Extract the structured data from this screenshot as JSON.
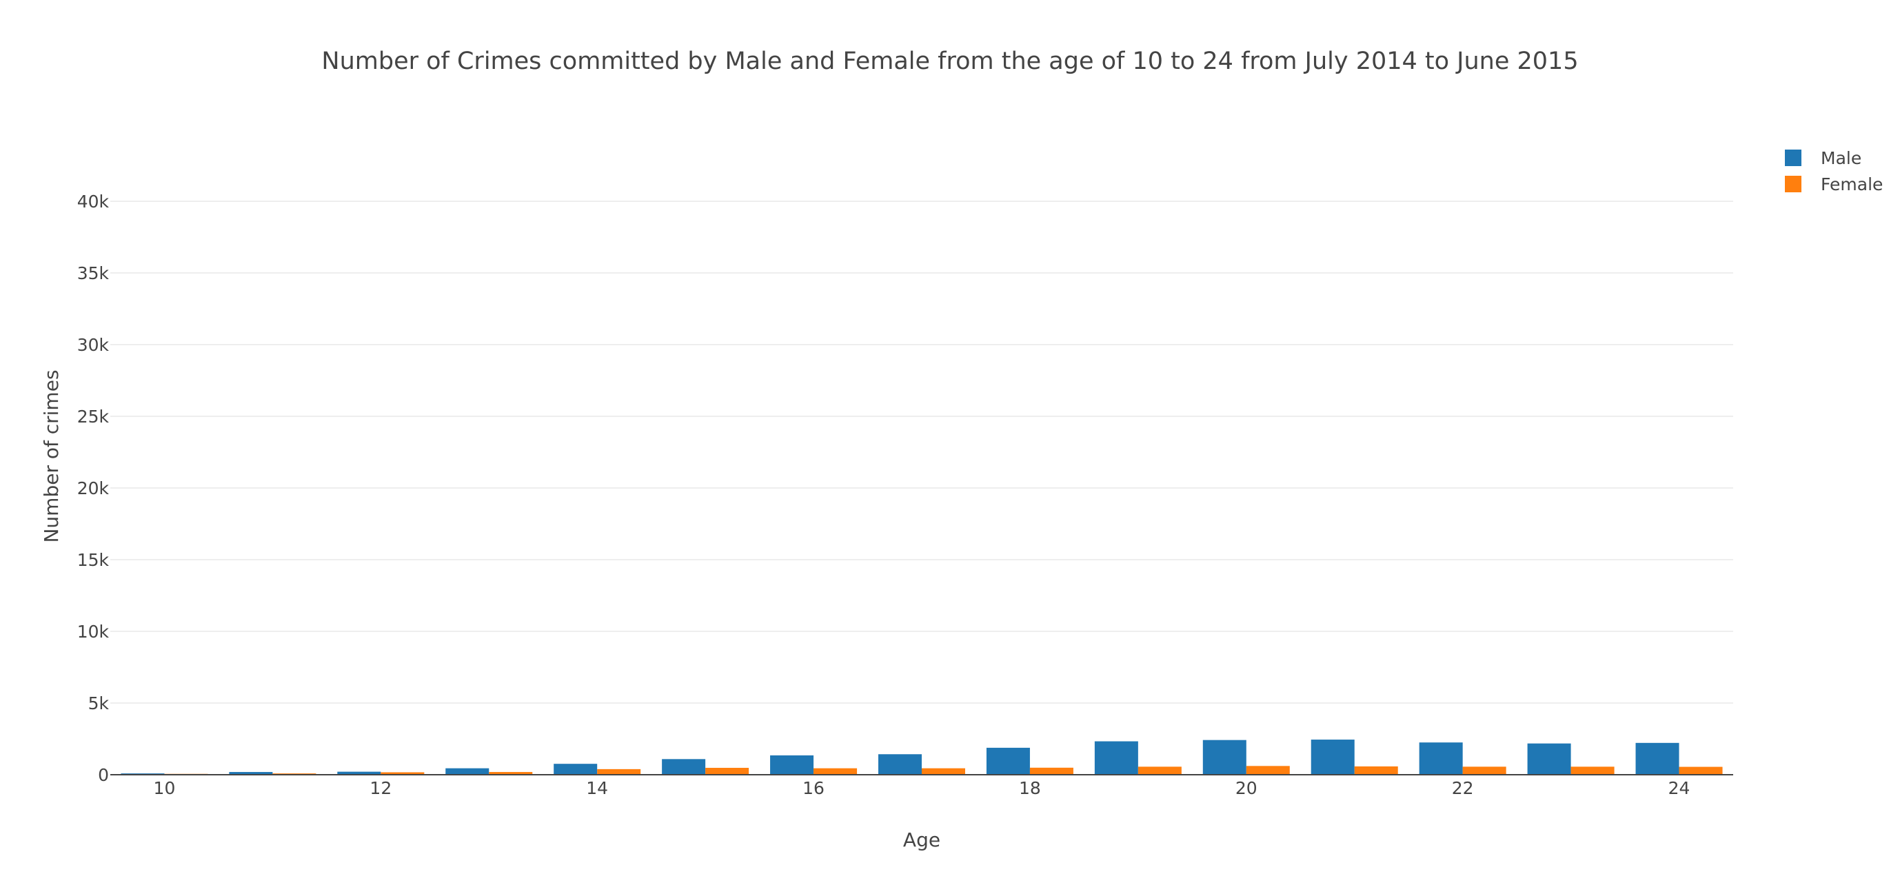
{
  "chart_data": {
    "type": "bar",
    "title": "Number of Crimes committed by Male and Female from the age of 10 to 24 from July 2014 to June 2015",
    "xlabel": "Age",
    "ylabel": "Number of crimes",
    "categories": [
      10,
      11,
      12,
      13,
      14,
      15,
      16,
      17,
      18,
      19,
      20,
      21,
      22,
      23,
      24
    ],
    "x_ticks": [
      10,
      12,
      14,
      16,
      18,
      20,
      22,
      24
    ],
    "y_ticks": [
      0,
      5000,
      10000,
      15000,
      20000,
      25000,
      30000,
      35000,
      40000
    ],
    "y_tick_labels": [
      "0",
      "5k",
      "10k",
      "15k",
      "20k",
      "25k",
      "30k",
      "35k",
      "40k"
    ],
    "ylim": [
      0,
      40000
    ],
    "grid": true,
    "legend_position": "top-right",
    "series": [
      {
        "name": "Male",
        "color": "#1f77b4",
        "values": [
          90,
          190,
          210,
          450,
          760,
          1090,
          1350,
          1430,
          1880,
          2330,
          2420,
          2450,
          2250,
          2180,
          2220
        ]
      },
      {
        "name": "Female",
        "color": "#ff7f0e",
        "values": [
          60,
          90,
          170,
          190,
          390,
          480,
          450,
          450,
          490,
          560,
          610,
          580,
          560,
          560,
          550
        ]
      }
    ]
  }
}
